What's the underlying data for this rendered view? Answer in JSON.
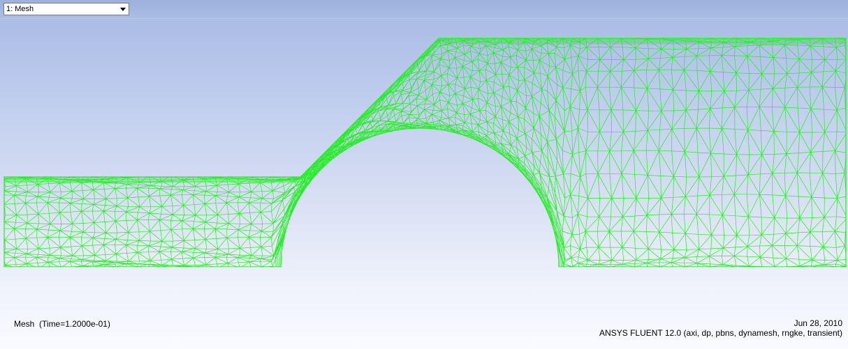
{
  "toolbar": {
    "window_select": "1: Mesh"
  },
  "caption": {
    "title": "Mesh",
    "time": "(Time=1.2000e-01)",
    "date": "Jun 28, 2010",
    "software": "ANSYS FLUENT 12.0 (axi, dp, pbns, dynamesh, rngke, transient)"
  },
  "colors": {
    "mesh": "#22ee22"
  },
  "icons": {
    "dropdown": "chevron-down-icon"
  }
}
